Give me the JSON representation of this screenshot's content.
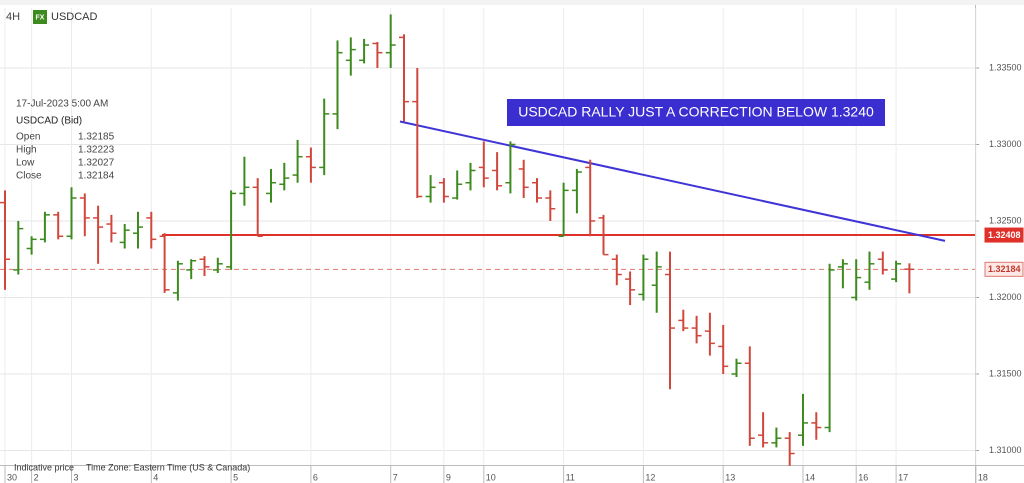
{
  "header": {
    "interval": "4H",
    "badge": "FX",
    "symbol": "USDCAD"
  },
  "info": {
    "datetime": "17-Jul-2023 5:00 AM",
    "symbol": "USDCAD (Bid)",
    "rows": [
      {
        "label": "Open",
        "value": 1.32185
      },
      {
        "label": "High",
        "value": 1.32223
      },
      {
        "label": "Low",
        "value": 1.32027
      },
      {
        "label": "Close",
        "value": 1.32184
      }
    ]
  },
  "footer": {
    "note": "Indicative price",
    "timezone": "Time Zone: Eastern Time (US & Canada)"
  },
  "chart_data": {
    "type": "ohlc",
    "up_color": "#3d8a1e",
    "down_color": "#d0473c",
    "annotation": "USDCAD RALLY JUST A CORRECTION BELOW 1.3240",
    "categories": [
      "30",
      null,
      "2",
      null,
      null,
      "3",
      null,
      null,
      null,
      null,
      null,
      "4",
      null,
      null,
      null,
      null,
      null,
      "5",
      null,
      null,
      null,
      null,
      null,
      "6",
      null,
      null,
      null,
      null,
      null,
      "7",
      null,
      null,
      null,
      "9",
      null,
      null,
      "10",
      null,
      null,
      null,
      null,
      null,
      "11",
      null,
      null,
      null,
      null,
      null,
      "12",
      null,
      null,
      null,
      null,
      null,
      "13",
      null,
      null,
      null,
      null,
      null,
      "14",
      null,
      null,
      null,
      "16",
      null,
      null,
      "17",
      null,
      null,
      null,
      null,
      null,
      "18"
    ],
    "open": [
      1.3262,
      1.3218,
      1.3232,
      1.3238,
      1.3254,
      1.324,
      1.3265,
      1.3252,
      1.3248,
      1.3236,
      1.3242,
      1.3252,
      1.324,
      1.3203,
      1.3218,
      1.3225,
      1.3218,
      1.322,
      1.3268,
      1.3272,
      1.3268,
      1.3274,
      1.328,
      1.3292,
      1.3285,
      1.332,
      1.3355,
      1.3355,
      1.3366,
      1.336,
      1.337,
      1.3328,
      1.3266,
      1.3275,
      1.3265,
      1.3275,
      1.3285,
      1.3283,
      1.3275,
      1.3284,
      1.3275,
      1.3265,
      1.324,
      1.327,
      1.3285,
      1.3252,
      1.3225,
      1.3212,
      1.3202,
      1.3208,
      1.3215,
      1.3185,
      1.318,
      1.3178,
      1.3168,
      1.315,
      1.3157,
      1.311,
      1.3105,
      1.3108,
      1.311,
      1.3118,
      1.3115,
      1.322,
      1.32,
      1.321,
      1.3225,
      1.3212,
      1.32185,
      null,
      null,
      null,
      null,
      null
    ],
    "high": [
      1.327,
      1.325,
      1.324,
      1.3256,
      1.3256,
      1.3272,
      1.3268,
      1.326,
      1.3254,
      1.3248,
      1.3256,
      1.3256,
      1.3242,
      1.3224,
      1.3225,
      1.3227,
      1.3226,
      1.327,
      1.3292,
      1.3278,
      1.3284,
      1.3288,
      1.3303,
      1.3298,
      1.333,
      1.3368,
      1.337,
      1.3369,
      1.3367,
      1.3385,
      1.3372,
      1.335,
      1.328,
      1.3278,
      1.3283,
      1.3288,
      1.3302,
      1.3295,
      1.3302,
      1.329,
      1.3278,
      1.327,
      1.3275,
      1.3284,
      1.329,
      1.3254,
      1.3228,
      1.3217,
      1.3228,
      1.323,
      1.323,
      1.3192,
      1.3188,
      1.319,
      1.3182,
      1.316,
      1.3168,
      1.3125,
      1.3115,
      1.3112,
      1.3137,
      1.3125,
      1.3222,
      1.3225,
      1.3225,
      1.323,
      1.323,
      1.3224,
      1.32223,
      null,
      null,
      null,
      null,
      null
    ],
    "low": [
      1.3205,
      1.3215,
      1.3228,
      1.3236,
      1.3238,
      1.3238,
      1.324,
      1.3222,
      1.3236,
      1.3232,
      1.3232,
      1.3232,
      1.3203,
      1.3198,
      1.3212,
      1.3214,
      1.3216,
      1.3218,
      1.326,
      1.324,
      1.3262,
      1.327,
      1.3275,
      1.3275,
      1.328,
      1.331,
      1.3345,
      1.3353,
      1.335,
      1.335,
      1.3315,
      1.3265,
      1.3262,
      1.3262,
      1.3264,
      1.327,
      1.3272,
      1.327,
      1.3268,
      1.3265,
      1.3262,
      1.325,
      1.324,
      1.3255,
      1.324,
      1.3228,
      1.3208,
      1.3195,
      1.3198,
      1.319,
      1.314,
      1.3178,
      1.317,
      1.3162,
      1.315,
      1.3148,
      1.3103,
      1.3102,
      1.3102,
      1.309,
      1.3103,
      1.3107,
      1.3112,
      1.3206,
      1.3198,
      1.3205,
      1.3215,
      1.321,
      1.32027,
      null,
      null,
      null,
      null,
      null
    ],
    "close": [
      1.3225,
      1.3245,
      1.3238,
      1.3254,
      1.324,
      1.3265,
      1.3252,
      1.3246,
      1.3242,
      1.3244,
      1.3246,
      1.3238,
      1.3205,
      1.3222,
      1.3224,
      1.322,
      1.3222,
      1.3268,
      1.3272,
      1.324,
      1.3275,
      1.3278,
      1.3292,
      1.3285,
      1.332,
      1.336,
      1.3362,
      1.3365,
      1.336,
      1.3365,
      1.3328,
      1.3266,
      1.3272,
      1.3266,
      1.3274,
      1.3283,
      1.3278,
      1.3273,
      1.33,
      1.3272,
      1.3265,
      1.3258,
      1.327,
      1.3282,
      1.325,
      1.3228,
      1.3215,
      1.3205,
      1.3225,
      1.322,
      1.318,
      1.318,
      1.3175,
      1.317,
      1.3155,
      1.3157,
      1.3108,
      1.3105,
      1.3108,
      1.3098,
      1.3118,
      1.3115,
      1.3218,
      1.3222,
      1.3213,
      1.3222,
      1.3218,
      1.3222,
      1.32184,
      null,
      null,
      null,
      null,
      null
    ],
    "ylim": [
      1.30905,
      1.33892
    ],
    "yticks": [
      {
        "value": 1.31,
        "label": "1.31000"
      },
      {
        "value": 1.315,
        "label": "1.31500"
      },
      {
        "value": 1.32,
        "label": "1.32000"
      },
      {
        "value": 1.325,
        "label": "1.32500"
      },
      {
        "value": 1.33,
        "label": "1.33000"
      },
      {
        "value": 1.335,
        "label": "1.33500"
      }
    ],
    "grid": true,
    "levels": [
      {
        "value": 1.32408,
        "color": "#e0302a",
        "dashed": false
      },
      {
        "value": 1.32184,
        "color": "#e07870",
        "dashed": true
      }
    ],
    "trendline": {
      "start": 1.3315,
      "end": 1.3237,
      "color": "#3f35d6"
    }
  }
}
